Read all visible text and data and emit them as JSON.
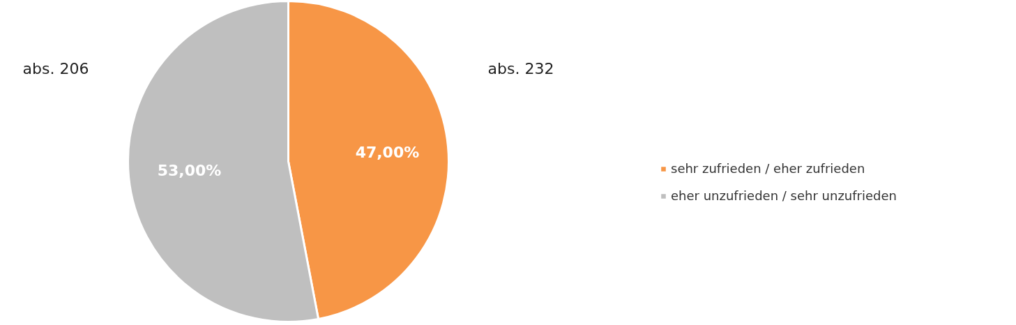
{
  "chart_data": {
    "type": "pie",
    "categories": [
      "sehr zufrieden / eher zufrieden",
      "eher unzufrieden / sehr unzufrieden"
    ],
    "values": [
      47,
      53
    ],
    "colors": [
      "#f79646",
      "#bfbfbf"
    ],
    "value_labels": [
      "47,00%",
      "53,00%"
    ],
    "annotations": [
      "abs. 232",
      "abs. 206"
    ],
    "legend": "right"
  }
}
